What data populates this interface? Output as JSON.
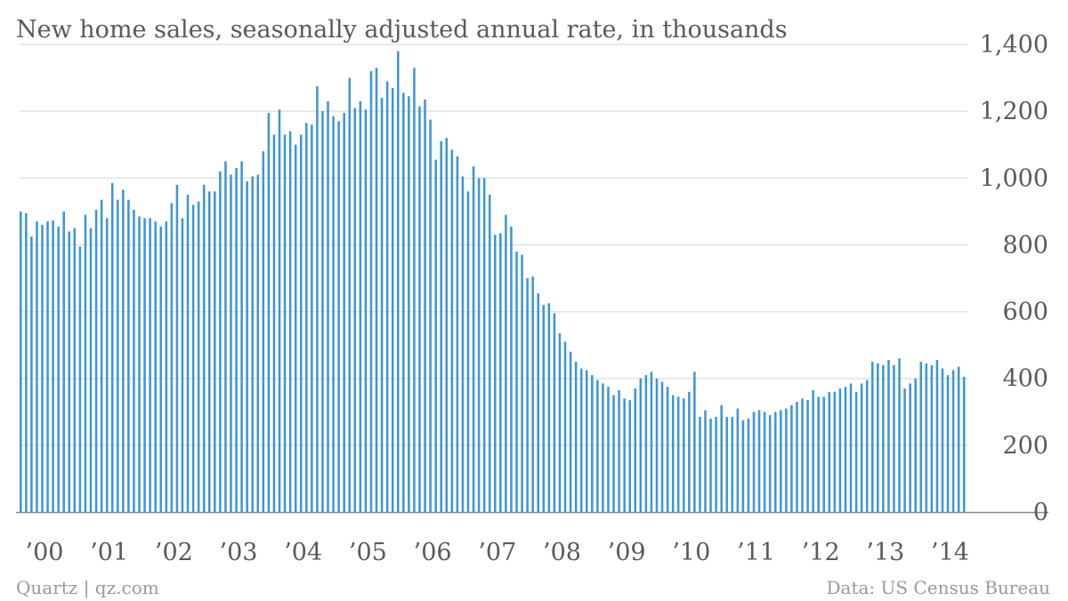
{
  "title": "New home sales, seasonally adjusted annual rate, in thousands",
  "source": "Quartz | qz.com",
  "credit": "Data: US Census Bureau",
  "colors": {
    "bar": "#3d96d6",
    "text": "#5a5a5a",
    "grid": "#e3e3e3",
    "footer": "#9a9a9a"
  },
  "chart_data": {
    "type": "bar",
    "title": "New home sales, seasonally adjusted annual rate, in thousands",
    "xlabel": "",
    "ylabel": "",
    "ylim": [
      0,
      1400
    ],
    "grid": true,
    "y_axis_position": "right",
    "y_ticks": [
      0,
      200,
      400,
      600,
      800,
      1000,
      1200,
      1400
    ],
    "y_tick_labels": [
      "0",
      "200",
      "400",
      "600",
      "800",
      "1,000",
      "1,200",
      "1,400"
    ],
    "x_tick_labels": [
      "’00",
      "’01",
      "’02",
      "’03",
      "’04",
      "’05",
      "’06",
      "’07",
      "’08",
      "’09",
      "’10",
      "’11",
      "’12",
      "’13",
      "’14"
    ],
    "start": "2000-01",
    "series": [
      {
        "frequency": "monthly",
        "values": [
          900,
          895,
          825,
          870,
          860,
          870,
          873,
          855,
          900,
          840,
          850,
          795,
          890,
          850,
          905,
          935,
          880,
          985,
          935,
          965,
          935,
          905,
          885,
          880,
          880,
          870,
          855,
          870,
          925,
          980,
          880,
          950,
          920,
          930,
          980,
          960,
          960,
          1020,
          1050,
          1010,
          1030,
          1050,
          990,
          1005,
          1010,
          1080,
          1195,
          1130,
          1205,
          1130,
          1140,
          1100,
          1130,
          1165,
          1160,
          1275,
          1200,
          1230,
          1185,
          1170,
          1195,
          1300,
          1210,
          1230,
          1205,
          1320,
          1330,
          1240,
          1290,
          1270,
          1380,
          1255,
          1245,
          1330,
          1215,
          1235,
          1175,
          1055,
          1110,
          1120,
          1085,
          1065,
          1005,
          960,
          1035,
          1000,
          1000,
          950,
          830,
          835,
          890,
          855,
          780,
          770,
          700,
          705,
          655,
          620,
          625,
          595,
          535,
          510,
          480,
          450,
          430,
          425,
          410,
          395,
          385,
          375,
          350,
          365,
          340,
          335,
          370,
          400,
          410,
          420,
          400,
          390,
          375,
          350,
          345,
          340,
          360,
          420,
          285,
          305,
          280,
          285,
          320,
          285,
          285,
          310,
          275,
          280,
          300,
          305,
          300,
          290,
          300,
          305,
          310,
          320,
          330,
          340,
          335,
          365,
          345,
          345,
          360,
          360,
          370,
          375,
          385,
          360,
          385,
          395,
          450,
          445,
          440,
          455,
          440,
          460,
          370,
          385,
          400,
          450,
          445,
          440,
          455,
          430,
          410,
          425,
          435,
          405
        ]
      }
    ]
  }
}
